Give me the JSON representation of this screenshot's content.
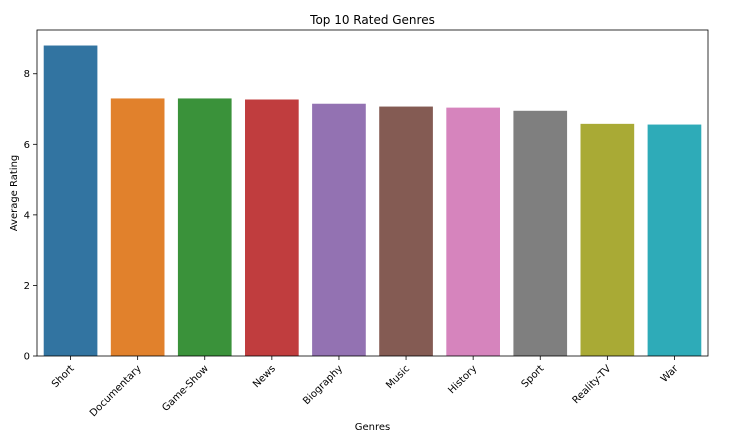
{
  "chart_data": {
    "type": "bar",
    "title": "Top 10 Rated Genres",
    "xlabel": "Genres",
    "ylabel": "Average Rating",
    "categories": [
      "Short",
      "Documentary",
      "Game-Show",
      "News",
      "Biography",
      "Music",
      "History",
      "Sport",
      "Reality-TV",
      "War"
    ],
    "values": [
      8.8,
      7.3,
      7.3,
      7.27,
      7.15,
      7.07,
      7.04,
      6.95,
      6.58,
      6.56
    ],
    "colors": [
      "#3274a1",
      "#e1812c",
      "#3a923a",
      "#c03d3e",
      "#9372b2",
      "#845b53",
      "#d684bd",
      "#7f7f7f",
      "#a9aa35",
      "#2eabb8"
    ],
    "ylim": [
      0,
      9.24
    ],
    "yticks": [
      0,
      2,
      4,
      6,
      8
    ],
    "grid": false,
    "legend": "none"
  }
}
